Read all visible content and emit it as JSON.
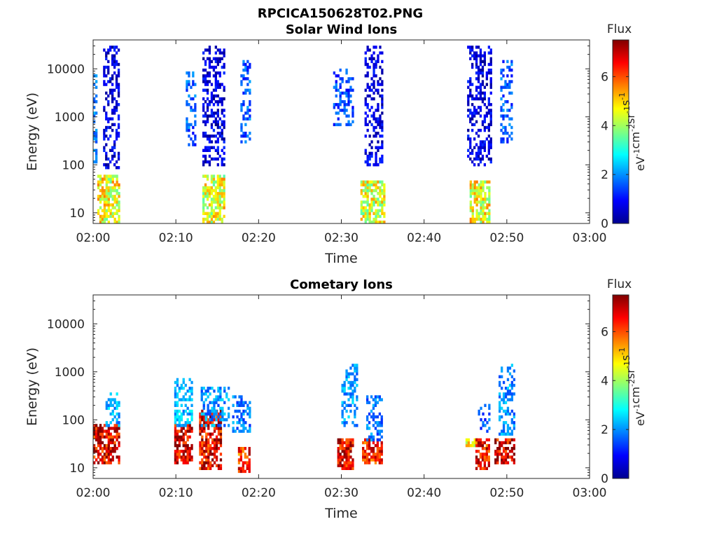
{
  "figure": {
    "title": "RPCICA150628T02.PNG"
  },
  "chart_data": [
    {
      "type": "heatmap",
      "title": "Solar Wind Ions",
      "xlabel": "Time",
      "ylabel": "Energy (eV)",
      "x_ticks": [
        "02:00",
        "02:10",
        "02:20",
        "02:30",
        "02:40",
        "02:50",
        "03:00"
      ],
      "x_range_minutes": [
        0,
        60
      ],
      "y_scale": "log",
      "y_ticks": [
        "10",
        "100",
        "1000",
        "10000"
      ],
      "y_range_ev": [
        6,
        40000
      ],
      "colorbar": {
        "label": "Flux",
        "unit": "eV-1 cm-2 sr-1 s-1",
        "min": 0,
        "max": 7.5,
        "ticks": [
          "0",
          "2",
          "4",
          "6"
        ],
        "colormap": "jet"
      },
      "bursts": [
        {
          "t_start": 0.0,
          "t_end": 0.3,
          "e_min": 100,
          "e_max": 8000,
          "flux": 1.8,
          "kind": "sparse"
        },
        {
          "t_start": 1.2,
          "t_end": 3.2,
          "e_min": 90,
          "e_max": 30000,
          "flux": 0.7,
          "kind": "sparse"
        },
        {
          "t_start": 0.5,
          "t_end": 3.2,
          "e_min": 6,
          "e_max": 60,
          "flux": 4.6,
          "kind": "dense"
        },
        {
          "t_start": 11.2,
          "t_end": 12.4,
          "e_min": 250,
          "e_max": 10000,
          "flux": 1.6,
          "kind": "sparse"
        },
        {
          "t_start": 13.2,
          "t_end": 15.8,
          "e_min": 100,
          "e_max": 30000,
          "flux": 0.7,
          "kind": "sparse"
        },
        {
          "t_start": 13.2,
          "t_end": 15.8,
          "e_min": 6,
          "e_max": 60,
          "flux": 4.5,
          "kind": "dense"
        },
        {
          "t_start": 17.8,
          "t_end": 19.0,
          "e_min": 300,
          "e_max": 15000,
          "flux": 1.6,
          "kind": "sparse"
        },
        {
          "t_start": 29.0,
          "t_end": 31.5,
          "e_min": 700,
          "e_max": 10000,
          "flux": 1.4,
          "kind": "sparse"
        },
        {
          "t_start": 32.8,
          "t_end": 35.0,
          "e_min": 100,
          "e_max": 30000,
          "flux": 0.7,
          "kind": "sparse"
        },
        {
          "t_start": 32.3,
          "t_end": 35.2,
          "e_min": 6,
          "e_max": 45,
          "flux": 4.4,
          "kind": "dense"
        },
        {
          "t_start": 45.2,
          "t_end": 48.0,
          "e_min": 100,
          "e_max": 30000,
          "flux": 0.7,
          "kind": "sparse"
        },
        {
          "t_start": 45.5,
          "t_end": 47.8,
          "e_min": 6,
          "e_max": 45,
          "flux": 4.6,
          "kind": "dense"
        },
        {
          "t_start": 49.2,
          "t_end": 50.5,
          "e_min": 300,
          "e_max": 15000,
          "flux": 1.6,
          "kind": "sparse"
        }
      ]
    },
    {
      "type": "heatmap",
      "title": "Cometary Ions",
      "xlabel": "Time",
      "ylabel": "Energy (eV)",
      "x_ticks": [
        "02:00",
        "02:10",
        "02:20",
        "02:30",
        "02:40",
        "02:50",
        "03:00"
      ],
      "x_range_minutes": [
        0,
        60
      ],
      "y_scale": "log",
      "y_ticks": [
        "10",
        "100",
        "1000",
        "10000"
      ],
      "y_range_ev": [
        6,
        40000
      ],
      "colorbar": {
        "label": "Flux",
        "unit": "eV-1 cm-2 sr-1 s-1",
        "min": 0,
        "max": 7.5,
        "ticks": [
          "0",
          "2",
          "4",
          "6"
        ],
        "colormap": "jet"
      },
      "bursts": [
        {
          "t_start": 0.0,
          "t_end": 3.2,
          "e_min": 12,
          "e_max": 80,
          "flux": 6.8,
          "kind": "dense"
        },
        {
          "t_start": 1.5,
          "t_end": 3.2,
          "e_min": 80,
          "e_max": 350,
          "flux": 2.2,
          "kind": "sparse"
        },
        {
          "t_start": 9.8,
          "t_end": 12.0,
          "e_min": 12,
          "e_max": 80,
          "flux": 6.9,
          "kind": "dense"
        },
        {
          "t_start": 9.8,
          "t_end": 12.0,
          "e_min": 80,
          "e_max": 700,
          "flux": 2.3,
          "kind": "sparse"
        },
        {
          "t_start": 12.8,
          "t_end": 15.5,
          "e_min": 10,
          "e_max": 150,
          "flux": 6.7,
          "kind": "dense"
        },
        {
          "t_start": 13.0,
          "t_end": 16.5,
          "e_min": 80,
          "e_max": 450,
          "flux": 2.0,
          "kind": "sparse"
        },
        {
          "t_start": 16.8,
          "t_end": 19.0,
          "e_min": 60,
          "e_max": 300,
          "flux": 1.8,
          "kind": "sparse"
        },
        {
          "t_start": 17.5,
          "t_end": 19.0,
          "e_min": 8,
          "e_max": 25,
          "flux": 6.2,
          "kind": "dense"
        },
        {
          "t_start": 29.5,
          "t_end": 31.5,
          "e_min": 10,
          "e_max": 40,
          "flux": 6.8,
          "kind": "dense"
        },
        {
          "t_start": 30.0,
          "t_end": 32.0,
          "e_min": 80,
          "e_max": 1400,
          "flux": 2.1,
          "kind": "sparse"
        },
        {
          "t_start": 32.5,
          "t_end": 35.0,
          "e_min": 12,
          "e_max": 40,
          "flux": 6.4,
          "kind": "dense"
        },
        {
          "t_start": 33.0,
          "t_end": 35.0,
          "e_min": 40,
          "e_max": 300,
          "flux": 1.8,
          "kind": "sparse"
        },
        {
          "t_start": 45.0,
          "t_end": 46.5,
          "e_min": 30,
          "e_max": 40,
          "flux": 4.6,
          "kind": "dense"
        },
        {
          "t_start": 46.2,
          "t_end": 47.8,
          "e_min": 10,
          "e_max": 40,
          "flux": 6.5,
          "kind": "dense"
        },
        {
          "t_start": 46.5,
          "t_end": 48.0,
          "e_min": 60,
          "e_max": 200,
          "flux": 1.5,
          "kind": "sparse"
        },
        {
          "t_start": 48.5,
          "t_end": 50.8,
          "e_min": 12,
          "e_max": 40,
          "flux": 6.9,
          "kind": "dense"
        },
        {
          "t_start": 49.0,
          "t_end": 51.0,
          "e_min": 50,
          "e_max": 1400,
          "flux": 2.0,
          "kind": "sparse"
        }
      ]
    }
  ]
}
